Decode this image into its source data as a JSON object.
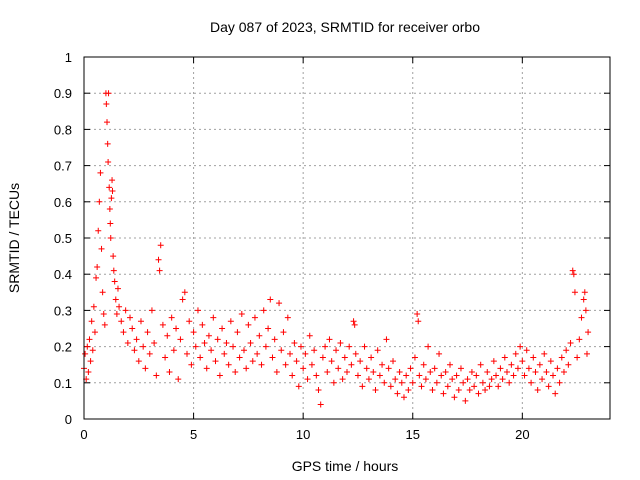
{
  "chart_data": {
    "type": "scatter",
    "title": "Day 087 of 2023, SRMTID for receiver orbo",
    "xlabel": "GPS time / hours",
    "ylabel": "SRMTID / TECUs",
    "xlim": [
      0,
      24
    ],
    "ylim": [
      0,
      1
    ],
    "xticks": [
      0,
      5,
      10,
      15,
      20
    ],
    "xtick_labels": [
      "0",
      "5",
      "10",
      "15",
      "20"
    ],
    "yticks": [
      0,
      0.1,
      0.2,
      0.3,
      0.4,
      0.5,
      0.6,
      0.7,
      0.8,
      0.9,
      1
    ],
    "ytick_labels": [
      "0",
      "0.1",
      "0.2",
      "0.3",
      "0.4",
      "0.5",
      "0.6",
      "0.7",
      "0.8",
      "0.9",
      "1"
    ],
    "grid": true,
    "marker": "+",
    "series": [
      {
        "name": "SRMTID",
        "color": "#ff0000",
        "points": [
          [
            0.0,
            0.14
          ],
          [
            0.05,
            0.18
          ],
          [
            0.1,
            0.11
          ],
          [
            0.15,
            0.2
          ],
          [
            0.2,
            0.13
          ],
          [
            0.25,
            0.22
          ],
          [
            0.3,
            0.16
          ],
          [
            0.35,
            0.27
          ],
          [
            0.4,
            0.19
          ],
          [
            0.45,
            0.31
          ],
          [
            0.5,
            0.24
          ],
          [
            0.55,
            0.39
          ],
          [
            0.6,
            0.42
          ],
          [
            0.65,
            0.52
          ],
          [
            0.7,
            0.6
          ],
          [
            0.75,
            0.68
          ],
          [
            0.8,
            0.47
          ],
          [
            0.85,
            0.35
          ],
          [
            0.9,
            0.29
          ],
          [
            0.95,
            0.26
          ],
          [
            1.0,
            0.9
          ],
          [
            1.02,
            0.87
          ],
          [
            1.05,
            0.82
          ],
          [
            1.08,
            0.76
          ],
          [
            1.1,
            0.71
          ],
          [
            1.12,
            0.9
          ],
          [
            1.15,
            0.64
          ],
          [
            1.18,
            0.58
          ],
          [
            1.2,
            0.54
          ],
          [
            1.22,
            0.5
          ],
          [
            1.25,
            0.61
          ],
          [
            1.28,
            0.66
          ],
          [
            1.3,
            0.63
          ],
          [
            1.33,
            0.45
          ],
          [
            1.36,
            0.41
          ],
          [
            1.4,
            0.38
          ],
          [
            1.45,
            0.33
          ],
          [
            1.5,
            0.29
          ],
          [
            1.55,
            0.36
          ],
          [
            1.6,
            0.31
          ],
          [
            1.7,
            0.27
          ],
          [
            1.8,
            0.24
          ],
          [
            1.9,
            0.3
          ],
          [
            2.0,
            0.21
          ],
          [
            2.1,
            0.28
          ],
          [
            2.2,
            0.25
          ],
          [
            2.3,
            0.19
          ],
          [
            2.4,
            0.22
          ],
          [
            2.5,
            0.16
          ],
          [
            2.6,
            0.27
          ],
          [
            2.7,
            0.2
          ],
          [
            2.8,
            0.14
          ],
          [
            2.9,
            0.24
          ],
          [
            3.0,
            0.18
          ],
          [
            3.1,
            0.3
          ],
          [
            3.2,
            0.21
          ],
          [
            3.3,
            0.12
          ],
          [
            3.4,
            0.44
          ],
          [
            3.45,
            0.41
          ],
          [
            3.5,
            0.48
          ],
          [
            3.6,
            0.26
          ],
          [
            3.7,
            0.17
          ],
          [
            3.8,
            0.23
          ],
          [
            3.9,
            0.13
          ],
          [
            4.0,
            0.28
          ],
          [
            4.1,
            0.19
          ],
          [
            4.2,
            0.25
          ],
          [
            4.3,
            0.11
          ],
          [
            4.4,
            0.22
          ],
          [
            4.5,
            0.33
          ],
          [
            4.6,
            0.35
          ],
          [
            4.7,
            0.18
          ],
          [
            4.8,
            0.27
          ],
          [
            4.9,
            0.15
          ],
          [
            5.0,
            0.24
          ],
          [
            5.1,
            0.2
          ],
          [
            5.2,
            0.3
          ],
          [
            5.3,
            0.17
          ],
          [
            5.4,
            0.26
          ],
          [
            5.5,
            0.21
          ],
          [
            5.6,
            0.14
          ],
          [
            5.7,
            0.23
          ],
          [
            5.8,
            0.19
          ],
          [
            5.9,
            0.28
          ],
          [
            6.0,
            0.16
          ],
          [
            6.1,
            0.22
          ],
          [
            6.2,
            0.12
          ],
          [
            6.3,
            0.25
          ],
          [
            6.4,
            0.18
          ],
          [
            6.5,
            0.21
          ],
          [
            6.6,
            0.15
          ],
          [
            6.7,
            0.27
          ],
          [
            6.8,
            0.2
          ],
          [
            6.9,
            0.13
          ],
          [
            7.0,
            0.24
          ],
          [
            7.1,
            0.17
          ],
          [
            7.2,
            0.29
          ],
          [
            7.3,
            0.19
          ],
          [
            7.4,
            0.14
          ],
          [
            7.5,
            0.26
          ],
          [
            7.6,
            0.21
          ],
          [
            7.7,
            0.16
          ],
          [
            7.8,
            0.28
          ],
          [
            7.9,
            0.18
          ],
          [
            8.0,
            0.23
          ],
          [
            8.1,
            0.15
          ],
          [
            8.2,
            0.3
          ],
          [
            8.3,
            0.2
          ],
          [
            8.4,
            0.25
          ],
          [
            8.5,
            0.33
          ],
          [
            8.6,
            0.17
          ],
          [
            8.7,
            0.22
          ],
          [
            8.8,
            0.13
          ],
          [
            8.9,
            0.32
          ],
          [
            9.0,
            0.19
          ],
          [
            9.1,
            0.24
          ],
          [
            9.2,
            0.15
          ],
          [
            9.3,
            0.28
          ],
          [
            9.4,
            0.18
          ],
          [
            9.5,
            0.12
          ],
          [
            9.6,
            0.21
          ],
          [
            9.7,
            0.16
          ],
          [
            9.8,
            0.09
          ],
          [
            9.9,
            0.2
          ],
          [
            10.0,
            0.14
          ],
          [
            10.1,
            0.18
          ],
          [
            10.2,
            0.11
          ],
          [
            10.3,
            0.23
          ],
          [
            10.4,
            0.15
          ],
          [
            10.5,
            0.19
          ],
          [
            10.6,
            0.12
          ],
          [
            10.7,
            0.08
          ],
          [
            10.8,
            0.04
          ],
          [
            10.9,
            0.17
          ],
          [
            11.0,
            0.2
          ],
          [
            11.1,
            0.13
          ],
          [
            11.2,
            0.22
          ],
          [
            11.3,
            0.16
          ],
          [
            11.4,
            0.1
          ],
          [
            11.5,
            0.19
          ],
          [
            11.6,
            0.14
          ],
          [
            11.7,
            0.21
          ],
          [
            11.8,
            0.11
          ],
          [
            11.9,
            0.17
          ],
          [
            12.0,
            0.13
          ],
          [
            12.1,
            0.2
          ],
          [
            12.2,
            0.15
          ],
          [
            12.3,
            0.27
          ],
          [
            12.35,
            0.26
          ],
          [
            12.4,
            0.18
          ],
          [
            12.5,
            0.12
          ],
          [
            12.6,
            0.16
          ],
          [
            12.7,
            0.09
          ],
          [
            12.8,
            0.2
          ],
          [
            12.9,
            0.14
          ],
          [
            13.0,
            0.11
          ],
          [
            13.1,
            0.17
          ],
          [
            13.2,
            0.13
          ],
          [
            13.3,
            0.08
          ],
          [
            13.4,
            0.19
          ],
          [
            13.5,
            0.12
          ],
          [
            13.6,
            0.15
          ],
          [
            13.7,
            0.1
          ],
          [
            13.8,
            0.22
          ],
          [
            13.9,
            0.14
          ],
          [
            14.0,
            0.09
          ],
          [
            14.1,
            0.16
          ],
          [
            14.2,
            0.11
          ],
          [
            14.3,
            0.07
          ],
          [
            14.4,
            0.13
          ],
          [
            14.5,
            0.1
          ],
          [
            14.6,
            0.06
          ],
          [
            14.7,
            0.12
          ],
          [
            14.8,
            0.08
          ],
          [
            14.9,
            0.14
          ],
          [
            15.0,
            0.1
          ],
          [
            15.1,
            0.17
          ],
          [
            15.2,
            0.29
          ],
          [
            15.25,
            0.27
          ],
          [
            15.3,
            0.12
          ],
          [
            15.4,
            0.09
          ],
          [
            15.5,
            0.15
          ],
          [
            15.6,
            0.11
          ],
          [
            15.7,
            0.2
          ],
          [
            15.8,
            0.13
          ],
          [
            15.9,
            0.08
          ],
          [
            16.0,
            0.14
          ],
          [
            16.1,
            0.1
          ],
          [
            16.2,
            0.18
          ],
          [
            16.3,
            0.12
          ],
          [
            16.4,
            0.07
          ],
          [
            16.5,
            0.13
          ],
          [
            16.6,
            0.09
          ],
          [
            16.7,
            0.15
          ],
          [
            16.8,
            0.11
          ],
          [
            16.9,
            0.06
          ],
          [
            17.0,
            0.12
          ],
          [
            17.1,
            0.08
          ],
          [
            17.2,
            0.14
          ],
          [
            17.3,
            0.1
          ],
          [
            17.4,
            0.05
          ],
          [
            17.5,
            0.11
          ],
          [
            17.6,
            0.08
          ],
          [
            17.7,
            0.13
          ],
          [
            17.8,
            0.09
          ],
          [
            17.9,
            0.12
          ],
          [
            18.0,
            0.07
          ],
          [
            18.1,
            0.15
          ],
          [
            18.2,
            0.1
          ],
          [
            18.3,
            0.08
          ],
          [
            18.4,
            0.13
          ],
          [
            18.5,
            0.09
          ],
          [
            18.6,
            0.11
          ],
          [
            18.7,
            0.16
          ],
          [
            18.8,
            0.12
          ],
          [
            18.9,
            0.09
          ],
          [
            19.0,
            0.14
          ],
          [
            19.1,
            0.11
          ],
          [
            19.2,
            0.17
          ],
          [
            19.3,
            0.13
          ],
          [
            19.4,
            0.1
          ],
          [
            19.5,
            0.15
          ],
          [
            19.6,
            0.12
          ],
          [
            19.7,
            0.18
          ],
          [
            19.8,
            0.14
          ],
          [
            19.9,
            0.2
          ],
          [
            20.0,
            0.16
          ],
          [
            20.1,
            0.12
          ],
          [
            20.2,
            0.19
          ],
          [
            20.3,
            0.14
          ],
          [
            20.4,
            0.1
          ],
          [
            20.5,
            0.17
          ],
          [
            20.6,
            0.13
          ],
          [
            20.7,
            0.08
          ],
          [
            20.8,
            0.15
          ],
          [
            20.9,
            0.11
          ],
          [
            21.0,
            0.18
          ],
          [
            21.1,
            0.13
          ],
          [
            21.2,
            0.09
          ],
          [
            21.3,
            0.16
          ],
          [
            21.4,
            0.12
          ],
          [
            21.5,
            0.07
          ],
          [
            21.6,
            0.14
          ],
          [
            21.7,
            0.1
          ],
          [
            21.8,
            0.17
          ],
          [
            21.9,
            0.13
          ],
          [
            22.0,
            0.19
          ],
          [
            22.1,
            0.15
          ],
          [
            22.2,
            0.21
          ],
          [
            22.3,
            0.41
          ],
          [
            22.35,
            0.4
          ],
          [
            22.4,
            0.35
          ],
          [
            22.5,
            0.17
          ],
          [
            22.6,
            0.22
          ],
          [
            22.7,
            0.28
          ],
          [
            22.8,
            0.33
          ],
          [
            22.85,
            0.35
          ],
          [
            22.9,
            0.3
          ],
          [
            22.95,
            0.18
          ],
          [
            23.0,
            0.24
          ]
        ]
      }
    ]
  }
}
